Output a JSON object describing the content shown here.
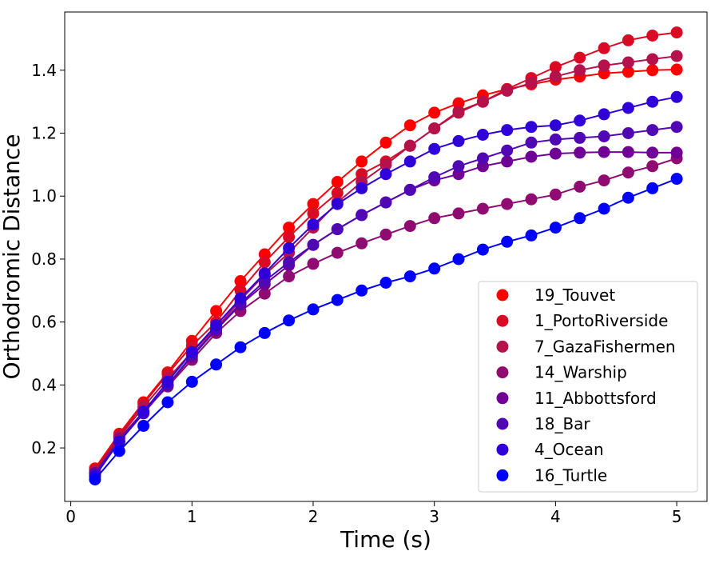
{
  "chart_data": {
    "type": "line",
    "xlabel": "Time (s)",
    "ylabel": "Orthodromic Distance",
    "xlim": [
      -0.05,
      5.25
    ],
    "ylim": [
      0.03,
      1.585
    ],
    "xticks": [
      "0",
      "1",
      "2",
      "3",
      "4",
      "5"
    ],
    "yticks": [
      "0.2",
      "0.4",
      "0.6",
      "0.8",
      "1.0",
      "1.2",
      "1.4"
    ],
    "legend_position": "lower-right",
    "grid": false,
    "x": [
      0.2,
      0.4,
      0.6,
      0.8,
      1.0,
      1.2,
      1.4,
      1.6,
      1.8,
      2.0,
      2.2,
      2.4,
      2.6,
      2.8,
      3.0,
      3.2,
      3.4,
      3.6,
      3.8,
      4.0,
      4.2,
      4.4,
      4.6,
      4.8,
      5.0
    ],
    "series": [
      {
        "name": "19_Touvet",
        "color": "#ff0000",
        "values": [
          0.135,
          0.245,
          0.345,
          0.44,
          0.54,
          0.635,
          0.73,
          0.815,
          0.9,
          0.975,
          1.045,
          1.11,
          1.17,
          1.225,
          1.265,
          1.295,
          1.32,
          1.34,
          1.355,
          1.37,
          1.38,
          1.39,
          1.395,
          1.4,
          1.402
        ]
      },
      {
        "name": "1_PortoRiverside",
        "color": "#da0a24",
        "values": [
          0.13,
          0.24,
          0.34,
          0.435,
          0.525,
          0.6,
          0.7,
          0.79,
          0.87,
          0.945,
          1.01,
          1.07,
          1.11,
          1.16,
          1.215,
          1.27,
          1.3,
          1.34,
          1.375,
          1.41,
          1.44,
          1.47,
          1.495,
          1.51,
          1.52
        ]
      },
      {
        "name": "7_GazaFishermen",
        "color": "#b5124b",
        "values": [
          0.125,
          0.235,
          0.33,
          0.42,
          0.505,
          0.58,
          0.67,
          0.75,
          0.82,
          0.9,
          0.98,
          1.045,
          1.1,
          1.16,
          1.215,
          1.265,
          1.3,
          1.335,
          1.36,
          1.38,
          1.4,
          1.415,
          1.425,
          1.435,
          1.445
        ]
      },
      {
        "name": "14_Warship",
        "color": "#8f0b72",
        "values": [
          0.12,
          0.23,
          0.315,
          0.395,
          0.48,
          0.565,
          0.635,
          0.69,
          0.745,
          0.785,
          0.82,
          0.85,
          0.878,
          0.905,
          0.93,
          0.945,
          0.96,
          0.975,
          0.99,
          1.005,
          1.03,
          1.05,
          1.075,
          1.095,
          1.12
        ]
      },
      {
        "name": "11_Abbottsford",
        "color": "#700095",
        "values": [
          0.12,
          0.22,
          0.31,
          0.4,
          0.49,
          0.575,
          0.655,
          0.72,
          0.78,
          0.845,
          0.895,
          0.94,
          0.98,
          1.02,
          1.05,
          1.07,
          1.095,
          1.11,
          1.125,
          1.135,
          1.138,
          1.14,
          1.14,
          1.138,
          1.138
        ]
      },
      {
        "name": "18_Bar",
        "color": "#5008b4",
        "values": [
          0.115,
          0.22,
          0.31,
          0.4,
          0.495,
          0.575,
          0.66,
          0.73,
          0.79,
          0.845,
          0.895,
          0.94,
          0.98,
          1.02,
          1.06,
          1.095,
          1.12,
          1.145,
          1.17,
          1.18,
          1.185,
          1.19,
          1.2,
          1.21,
          1.22
        ]
      },
      {
        "name": "4_Ocean",
        "color": "#3000d8",
        "values": [
          0.11,
          0.22,
          0.315,
          0.41,
          0.505,
          0.59,
          0.675,
          0.755,
          0.835,
          0.91,
          0.975,
          1.025,
          1.07,
          1.11,
          1.15,
          1.175,
          1.195,
          1.21,
          1.22,
          1.225,
          1.24,
          1.26,
          1.28,
          1.3,
          1.315
        ]
      },
      {
        "name": "16_Turtle",
        "color": "#0000ff",
        "values": [
          0.1,
          0.19,
          0.27,
          0.345,
          0.41,
          0.465,
          0.52,
          0.565,
          0.605,
          0.64,
          0.67,
          0.7,
          0.725,
          0.745,
          0.77,
          0.8,
          0.83,
          0.855,
          0.875,
          0.9,
          0.93,
          0.96,
          0.995,
          1.025,
          1.055
        ]
      }
    ]
  }
}
